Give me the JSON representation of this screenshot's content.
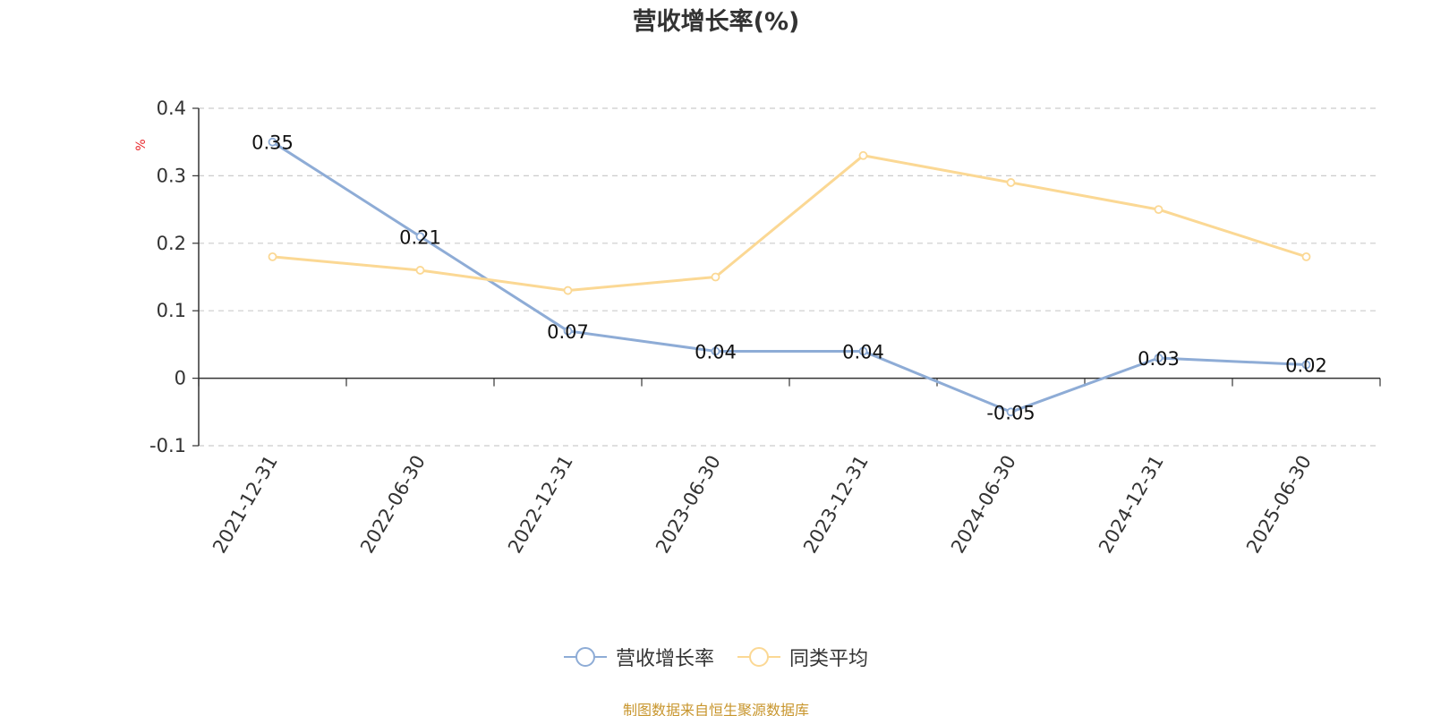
{
  "chart_data": {
    "type": "line",
    "title": "营收增长率(%)",
    "ylabel": "%",
    "xlabel": "",
    "categories": [
      "2021-12-31",
      "2022-06-30",
      "2022-12-31",
      "2023-06-30",
      "2023-12-31",
      "2024-06-30",
      "2024-12-31",
      "2025-06-30"
    ],
    "series": [
      {
        "name": "营收增长率",
        "values": [
          0.35,
          0.21,
          0.07,
          0.04,
          0.04,
          -0.05,
          0.03,
          0.02
        ],
        "color": "#8eacd6",
        "show_labels": true
      },
      {
        "name": "同类平均",
        "values": [
          0.18,
          0.16,
          0.13,
          0.15,
          0.33,
          0.29,
          0.25,
          0.18
        ],
        "color": "#fbd894",
        "show_labels": false
      }
    ],
    "ylim": [
      -0.1,
      0.4
    ],
    "yticks": [
      -0.1,
      0,
      0.1,
      0.2,
      0.3,
      0.4
    ],
    "ytick_labels": [
      "-0.1",
      "0",
      "0.1",
      "0.2",
      "0.3",
      "0.4"
    ],
    "grid": true,
    "legend_position": "bottom-center"
  },
  "source_note": "制图数据来自恒生聚源数据库",
  "colors": {
    "axis": "#333333",
    "grid": "#cccccc",
    "ylabel": "#e8262a",
    "source": "#c8962e"
  }
}
